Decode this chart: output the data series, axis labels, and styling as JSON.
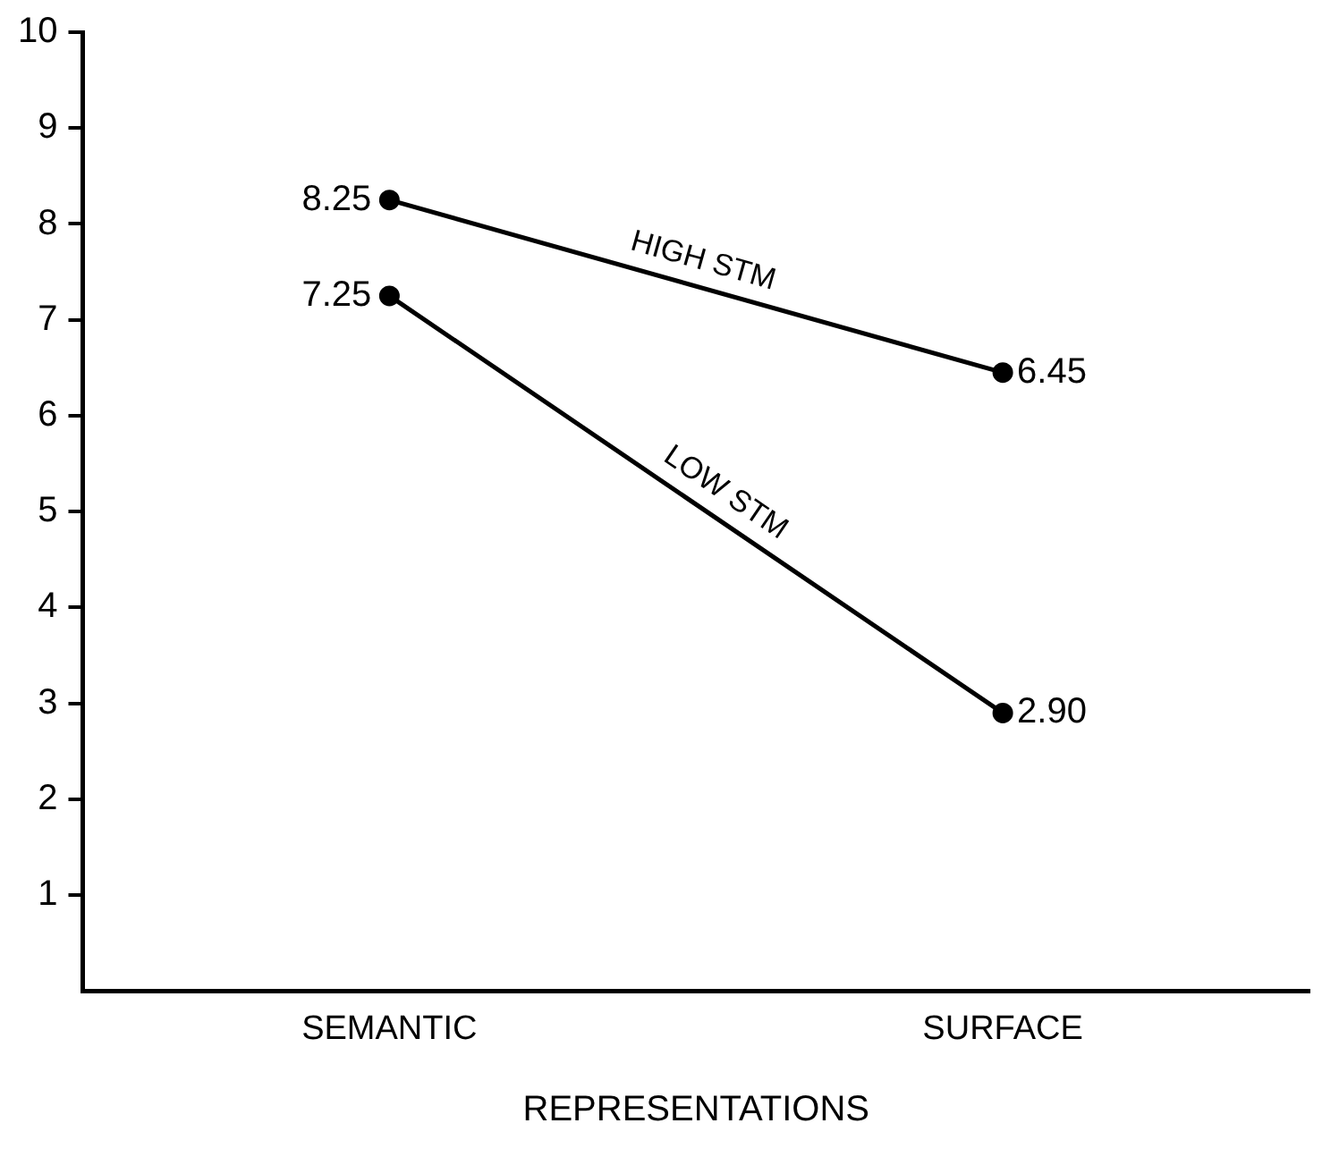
{
  "chart_data": {
    "type": "line",
    "xlabel": "REPRESENTATIONS",
    "categories": [
      "SEMANTIC",
      "SURFACE"
    ],
    "series": [
      {
        "name": "HIGH STM",
        "color": "#000000",
        "values": [
          8.25,
          6.45
        ],
        "value_labels": [
          "8.25",
          "6.45"
        ]
      },
      {
        "name": "LOW STM",
        "color": "#000000",
        "values": [
          7.25,
          2.9
        ],
        "value_labels": [
          "7.25",
          "2.90"
        ]
      }
    ],
    "ylim": [
      0,
      10
    ],
    "yticks": [
      1,
      2,
      3,
      4,
      5,
      6,
      7,
      8,
      9,
      10
    ],
    "grid": false,
    "legend": false,
    "marker": "circle",
    "line_style": "solid"
  }
}
